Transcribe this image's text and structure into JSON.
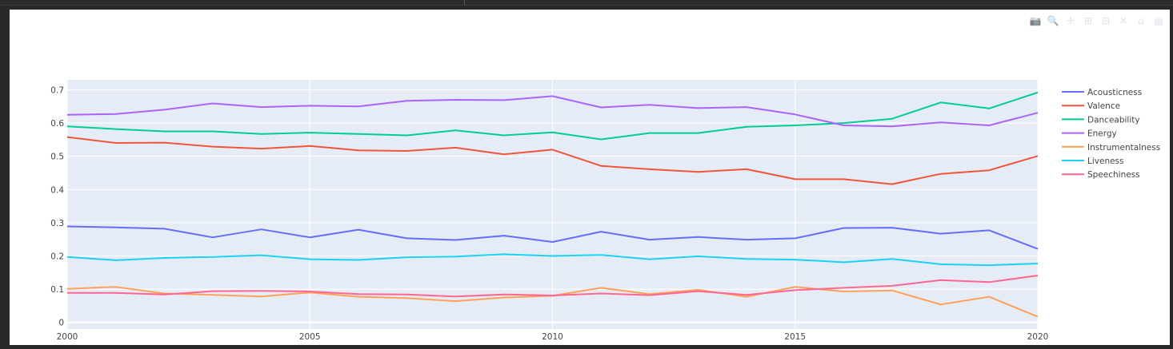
{
  "toolbar": [
    {
      "name": "camera-icon",
      "glyph": "📷"
    },
    {
      "name": "zoom-icon",
      "glyph": "🔍"
    },
    {
      "name": "pan-icon",
      "glyph": "✛"
    },
    {
      "name": "zoom-in-icon",
      "glyph": "⊞"
    },
    {
      "name": "zoom-out-icon",
      "glyph": "⊟"
    },
    {
      "name": "autoscale-icon",
      "glyph": "✕"
    },
    {
      "name": "reset-axes-icon",
      "glyph": "⌂"
    },
    {
      "name": "plotly-logo-icon",
      "glyph": "▤"
    }
  ],
  "chart_data": {
    "type": "line",
    "title": "",
    "xlabel": "",
    "ylabel": "",
    "xlim": [
      2000,
      2020
    ],
    "ylim": [
      -0.02,
      0.73
    ],
    "grid": true,
    "legend_position": "right",
    "x_ticks": [
      2000,
      2005,
      2010,
      2015,
      2020
    ],
    "y_ticks": [
      {
        "value": 0,
        "label": "0"
      },
      {
        "value": 0.1,
        "label": "0.1"
      },
      {
        "value": 0.2,
        "label": "0.2"
      },
      {
        "value": 0.3,
        "label": "0.3"
      },
      {
        "value": 0.4,
        "label": "0.4"
      },
      {
        "value": 0.5,
        "label": "0.5"
      },
      {
        "value": 0.6,
        "label": "0.6"
      },
      {
        "value": 0.7,
        "label": "0.7"
      }
    ],
    "x": [
      2000,
      2001,
      2002,
      2003,
      2004,
      2005,
      2006,
      2007,
      2008,
      2009,
      2010,
      2011,
      2012,
      2013,
      2014,
      2015,
      2016,
      2017,
      2018,
      2019,
      2020
    ],
    "series": [
      {
        "name": "Acousticness",
        "color": "#636efa",
        "values": [
          0.289,
          0.286,
          0.282,
          0.256,
          0.28,
          0.256,
          0.279,
          0.253,
          0.248,
          0.261,
          0.242,
          0.273,
          0.249,
          0.257,
          0.249,
          0.253,
          0.284,
          0.285,
          0.267,
          0.277,
          0.221
        ]
      },
      {
        "name": "Valence",
        "color": "#ef553b",
        "values": [
          0.558,
          0.54,
          0.541,
          0.529,
          0.523,
          0.531,
          0.518,
          0.516,
          0.526,
          0.506,
          0.52,
          0.471,
          0.461,
          0.453,
          0.461,
          0.431,
          0.431,
          0.416,
          0.447,
          0.458,
          0.501
        ]
      },
      {
        "name": "Danceability",
        "color": "#00cc96",
        "values": [
          0.59,
          0.582,
          0.575,
          0.575,
          0.567,
          0.571,
          0.567,
          0.563,
          0.578,
          0.563,
          0.572,
          0.551,
          0.57,
          0.57,
          0.589,
          0.593,
          0.6,
          0.613,
          0.662,
          0.644,
          0.692
        ]
      },
      {
        "name": "Energy",
        "color": "#ab63fa",
        "values": [
          0.625,
          0.627,
          0.64,
          0.659,
          0.648,
          0.652,
          0.65,
          0.667,
          0.67,
          0.669,
          0.681,
          0.647,
          0.655,
          0.645,
          0.648,
          0.626,
          0.593,
          0.59,
          0.602,
          0.593,
          0.631
        ]
      },
      {
        "name": "Instrumentalness",
        "color": "#ffa15a",
        "values": [
          0.101,
          0.107,
          0.087,
          0.083,
          0.078,
          0.09,
          0.077,
          0.073,
          0.064,
          0.075,
          0.08,
          0.104,
          0.085,
          0.098,
          0.077,
          0.107,
          0.093,
          0.096,
          0.054,
          0.077,
          0.017
        ]
      },
      {
        "name": "Liveness",
        "color": "#19d3f3",
        "values": [
          0.197,
          0.187,
          0.194,
          0.197,
          0.202,
          0.19,
          0.188,
          0.196,
          0.198,
          0.205,
          0.2,
          0.203,
          0.19,
          0.199,
          0.191,
          0.189,
          0.181,
          0.191,
          0.175,
          0.172,
          0.177
        ]
      },
      {
        "name": "Speechiness",
        "color": "#ff6692",
        "values": [
          0.089,
          0.089,
          0.084,
          0.094,
          0.095,
          0.093,
          0.085,
          0.084,
          0.078,
          0.084,
          0.081,
          0.087,
          0.082,
          0.094,
          0.083,
          0.097,
          0.104,
          0.11,
          0.127,
          0.121,
          0.141
        ]
      }
    ]
  }
}
